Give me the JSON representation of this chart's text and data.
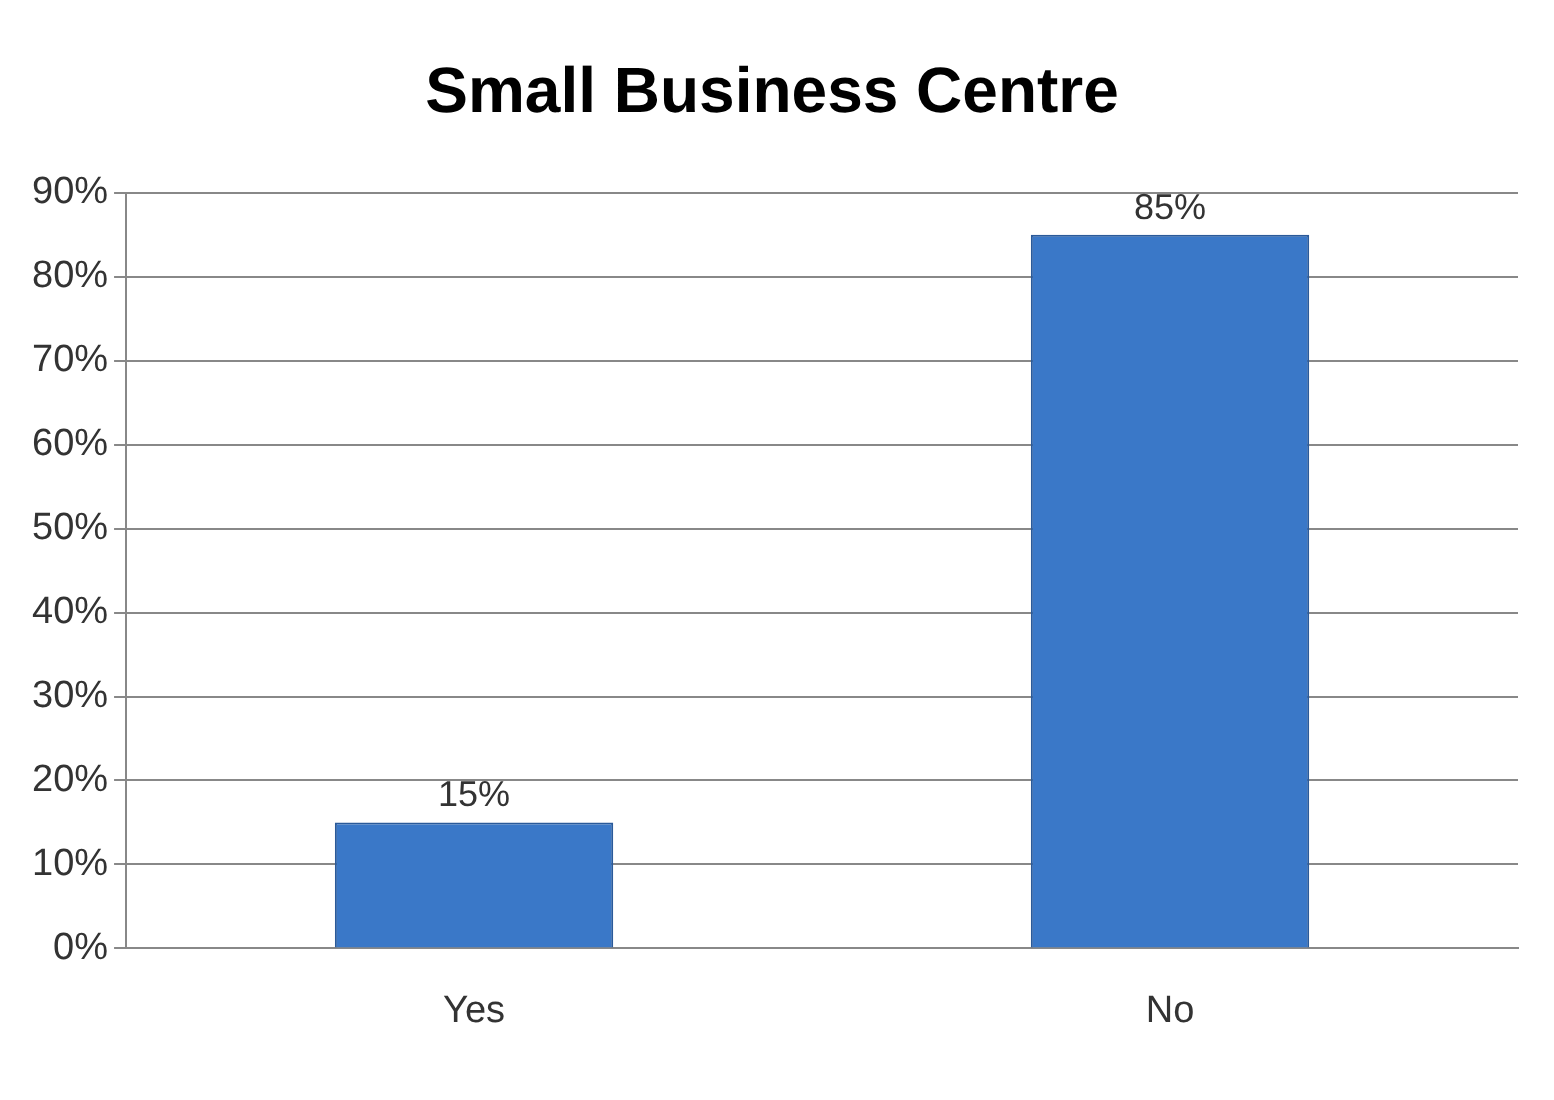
{
  "chart_data": {
    "type": "bar",
    "title": "Small Business Centre",
    "categories": [
      "Yes",
      "No"
    ],
    "values": [
      15,
      85
    ],
    "color": "#3a78c8",
    "value_labels": [
      "15%",
      "85%"
    ],
    "ylim": [
      0,
      90
    ],
    "yticks": [
      {
        "value": 0,
        "label": "0%"
      },
      {
        "value": 10,
        "label": "10%"
      },
      {
        "value": 20,
        "label": "20%"
      },
      {
        "value": 30,
        "label": "30%"
      },
      {
        "value": 40,
        "label": "40%"
      },
      {
        "value": 50,
        "label": "50%"
      },
      {
        "value": 60,
        "label": "60%"
      },
      {
        "value": 70,
        "label": "70%"
      },
      {
        "value": 80,
        "label": "80%"
      },
      {
        "value": 90,
        "label": "90%"
      }
    ],
    "grid": "y",
    "legend": false
  }
}
